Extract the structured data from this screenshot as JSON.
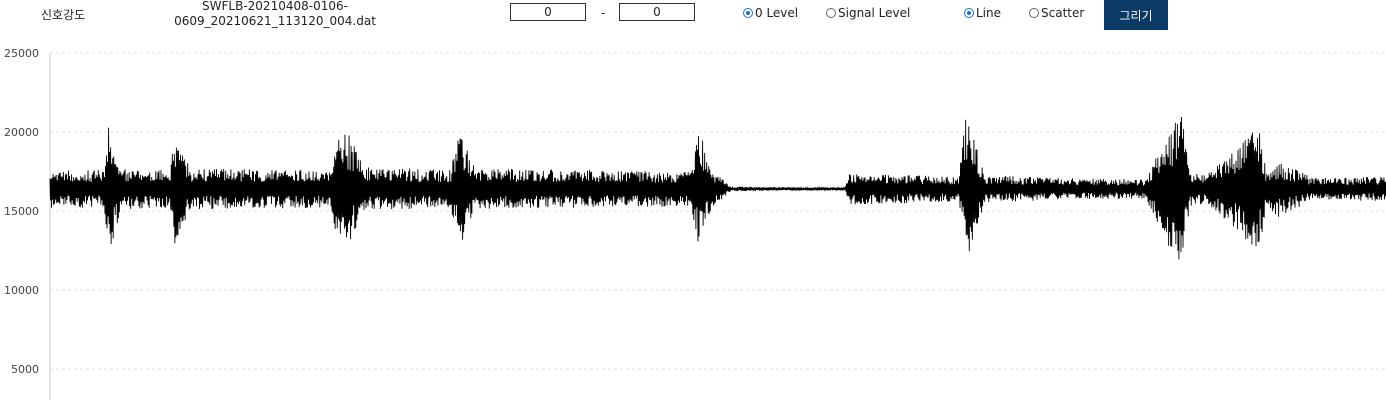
{
  "toolbar": {
    "title": "신호강도",
    "filename_line1": "SWFLB-20210408-0106-",
    "filename_line2": "0609_20210621_113120_004.dat",
    "range_start": "0",
    "range_end": "0",
    "range_separator": "-",
    "level_options": [
      {
        "label": "0 Level",
        "checked": true
      },
      {
        "label": "Signal Level",
        "checked": false
      }
    ],
    "type_options": [
      {
        "label": "Line",
        "checked": true
      },
      {
        "label": "Scatter",
        "checked": false
      }
    ],
    "draw_label": "그리기",
    "accent_color": "#0b3a66",
    "radio_color": "#1a6fd6"
  },
  "chart_data": {
    "type": "line",
    "title": "",
    "xlabel": "",
    "ylabel": "",
    "y_ticks": [
      "5000",
      "10000",
      "15000",
      "20000",
      "25000"
    ],
    "y_tick_values": [
      5000,
      10000,
      15000,
      20000,
      25000
    ],
    "ylim": [
      2000,
      25000
    ],
    "baseline": 16400,
    "grid": true,
    "legend": "none",
    "line_color": "#000000",
    "series": [
      {
        "x_fraction": [
          0.0,
          0.04,
          0.0435,
          0.048,
          0.055,
          0.09,
          0.0935,
          0.098,
          0.105,
          0.21,
          0.2175,
          0.224,
          0.235,
          0.3,
          0.3065,
          0.31,
          0.318,
          0.48,
          0.4855,
          0.489,
          0.495,
          0.51,
          0.515,
          0.56,
          0.595,
          0.5985,
          0.68,
          0.686,
          0.69,
          0.7,
          0.75,
          0.82,
          0.8425,
          0.8465,
          0.853,
          0.866,
          0.905,
          0.9105,
          0.92,
          0.945,
          1.0
        ],
        "envelope": [
          1200,
          1200,
          4000,
          3000,
          1300,
          1200,
          3700,
          3000,
          1300,
          1200,
          4100,
          3400,
          1400,
          1200,
          3800,
          3100,
          1300,
          1100,
          3700,
          3000,
          1200,
          150,
          150,
          100,
          100,
          1000,
          800,
          4900,
          3600,
          900,
          700,
          600,
          4500,
          5000,
          1200,
          900,
          4000,
          1200,
          1800,
          700,
          800
        ]
      }
    ]
  }
}
